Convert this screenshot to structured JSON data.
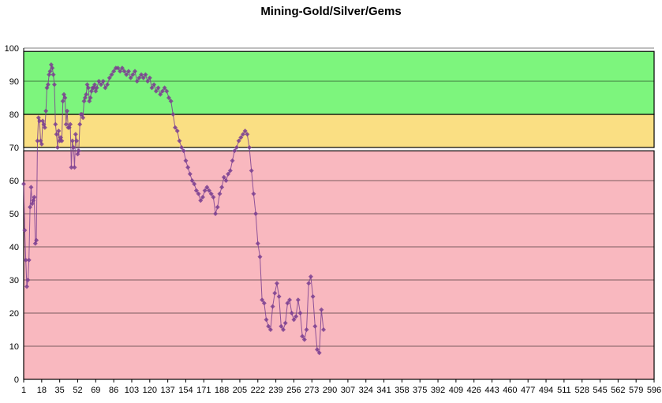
{
  "chart_data": {
    "type": "line",
    "title": "Mining-Gold/Silver/Gems",
    "xlabel": "",
    "ylabel": "",
    "xlim": [
      1,
      596
    ],
    "ylim": [
      0,
      100
    ],
    "y_ticks": [
      0,
      10,
      20,
      30,
      40,
      50,
      60,
      70,
      80,
      90,
      100
    ],
    "x_tick_labels": [
      "1",
      "18",
      "35",
      "52",
      "69",
      "86",
      "103",
      "120",
      "137",
      "154",
      "171",
      "188",
      "205",
      "222",
      "239",
      "256",
      "273",
      "290",
      "307",
      "324",
      "341",
      "358",
      "375",
      "392",
      "409",
      "426",
      "443",
      "460",
      "477",
      "494",
      "511",
      "528",
      "545",
      "562",
      "579",
      "596"
    ],
    "grid": "horizontal",
    "bands": [
      {
        "from": 0,
        "to": 69,
        "color": "#F9B8BF"
      },
      {
        "from": 70,
        "to": 80,
        "color": "#FADF83"
      },
      {
        "from": 80,
        "to": 99,
        "color": "#7DF57D"
      }
    ],
    "marker_color": "#7B3F91",
    "series": [
      {
        "x": [
          1,
          2,
          3,
          4,
          5,
          6,
          7,
          8,
          9,
          10,
          11,
          12,
          13,
          14,
          15,
          16,
          17,
          18,
          19,
          20,
          21,
          22,
          23,
          24,
          25,
          26,
          27,
          28,
          29,
          30,
          31,
          32,
          33,
          34,
          35,
          36,
          37,
          38,
          39,
          40,
          41,
          42,
          43,
          44,
          45,
          46,
          47,
          48,
          49,
          50,
          51,
          52,
          53,
          54,
          55,
          56,
          57,
          58,
          59,
          60,
          61,
          62,
          63,
          64,
          65,
          66,
          67,
          68,
          69,
          70,
          72,
          74,
          76,
          78,
          80,
          82,
          84,
          86,
          88,
          90,
          92,
          94,
          96,
          98,
          100,
          102,
          104,
          106,
          108,
          110,
          112,
          114,
          116,
          118,
          120,
          122,
          124,
          126,
          128,
          130,
          132,
          134,
          136,
          138,
          140,
          142,
          144,
          146,
          148,
          150,
          152,
          154,
          156,
          158,
          160,
          162,
          164,
          166,
          168,
          170,
          172,
          174,
          176,
          178,
          180,
          182,
          184,
          186,
          188,
          190,
          192,
          194,
          196,
          198,
          200,
          202,
          204,
          206,
          208,
          210,
          212,
          214,
          216,
          218,
          220,
          222,
          224,
          226,
          228,
          230,
          232,
          234,
          236,
          238,
          240,
          242,
          244,
          246,
          248,
          250,
          252,
          254,
          256,
          258,
          260,
          262,
          264,
          266,
          268,
          270,
          272,
          274,
          276,
          278,
          280,
          282,
          284
        ],
        "values": [
          59,
          45,
          36,
          28,
          30,
          36,
          52,
          58,
          53,
          54,
          55,
          41,
          42,
          72,
          79,
          78,
          72,
          71,
          78,
          77,
          76,
          81,
          88,
          89,
          92,
          93,
          95,
          94,
          92,
          89,
          77,
          74,
          70,
          75,
          72,
          73,
          72,
          84,
          86,
          85,
          77,
          81,
          76,
          76,
          77,
          64,
          72,
          70,
          64,
          74,
          72,
          68,
          69,
          77,
          80,
          80,
          79,
          84,
          85,
          86,
          89,
          88,
          84,
          85,
          87,
          88,
          88,
          89,
          87,
          88,
          90,
          89,
          90,
          88,
          89,
          91,
          92,
          93,
          94,
          94,
          93,
          94,
          93,
          92,
          93,
          91,
          92,
          93,
          90,
          91,
          92,
          91,
          92,
          90,
          91,
          88,
          89,
          87,
          88,
          86,
          87,
          88,
          87,
          85,
          84,
          80,
          76,
          75,
          72,
          70,
          69,
          66,
          64,
          62,
          60,
          59,
          57,
          56,
          54,
          55,
          57,
          58,
          57,
          56,
          55,
          50,
          52,
          56,
          58,
          61,
          60,
          62,
          63,
          66,
          69,
          70,
          72,
          73,
          74,
          75,
          74,
          70,
          63,
          56,
          50,
          41,
          37,
          24,
          23,
          18,
          16,
          15,
          22,
          26,
          29,
          25,
          16,
          15,
          17,
          23,
          24,
          20,
          18,
          19,
          24,
          20,
          13,
          12,
          15,
          29,
          31,
          25,
          16,
          9,
          8,
          21,
          15
        ],
        "note": ""
      }
    ]
  }
}
